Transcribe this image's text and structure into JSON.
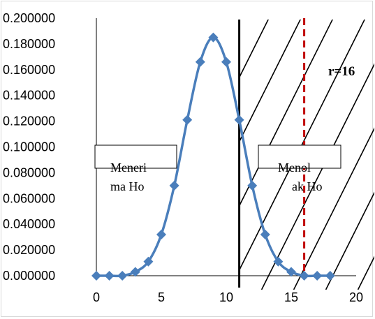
{
  "chart_data": {
    "type": "line",
    "title": "",
    "xlabel": "",
    "ylabel": "",
    "x": [
      0,
      1,
      2,
      3,
      4,
      5,
      6,
      7,
      8,
      9,
      10,
      11,
      12,
      13,
      14,
      15,
      16,
      17,
      18
    ],
    "series": [
      {
        "values": [
          0.0,
          0.0,
          0.0,
          0.003,
          0.011,
          0.032,
          0.07,
          0.121,
          0.166,
          0.185,
          0.166,
          0.121,
          0.07,
          0.032,
          0.011,
          0.003,
          0.0,
          0.0,
          0.0
        ],
        "color": "#4a7ebb",
        "marker": "diamond"
      }
    ],
    "xlim": [
      0,
      20
    ],
    "ylim": [
      0,
      0.2
    ],
    "x_ticks": [
      "0",
      "5",
      "10",
      "15",
      "20"
    ],
    "y_ticks": [
      "0.000000",
      "0.020000",
      "0.040000",
      "0.060000",
      "0.080000",
      "0.100000",
      "0.120000",
      "0.140000",
      "0.160000",
      "0.180000",
      "0.200000"
    ],
    "grid": "horizontal off",
    "critical_line": {
      "x": 11,
      "color": "#000000"
    },
    "reference_line": {
      "x": 16,
      "color": "#c00000",
      "style": "dashed",
      "label": "r=16"
    },
    "rejection_region": {
      "from": 11,
      "to": 20,
      "pattern": "diagonal hatch"
    },
    "annotations": {
      "accept_box": {
        "line1": "Meneri",
        "line2": "ma Ho"
      },
      "reject_box": {
        "line1": "Menol",
        "line2": "ak Ho"
      }
    }
  }
}
